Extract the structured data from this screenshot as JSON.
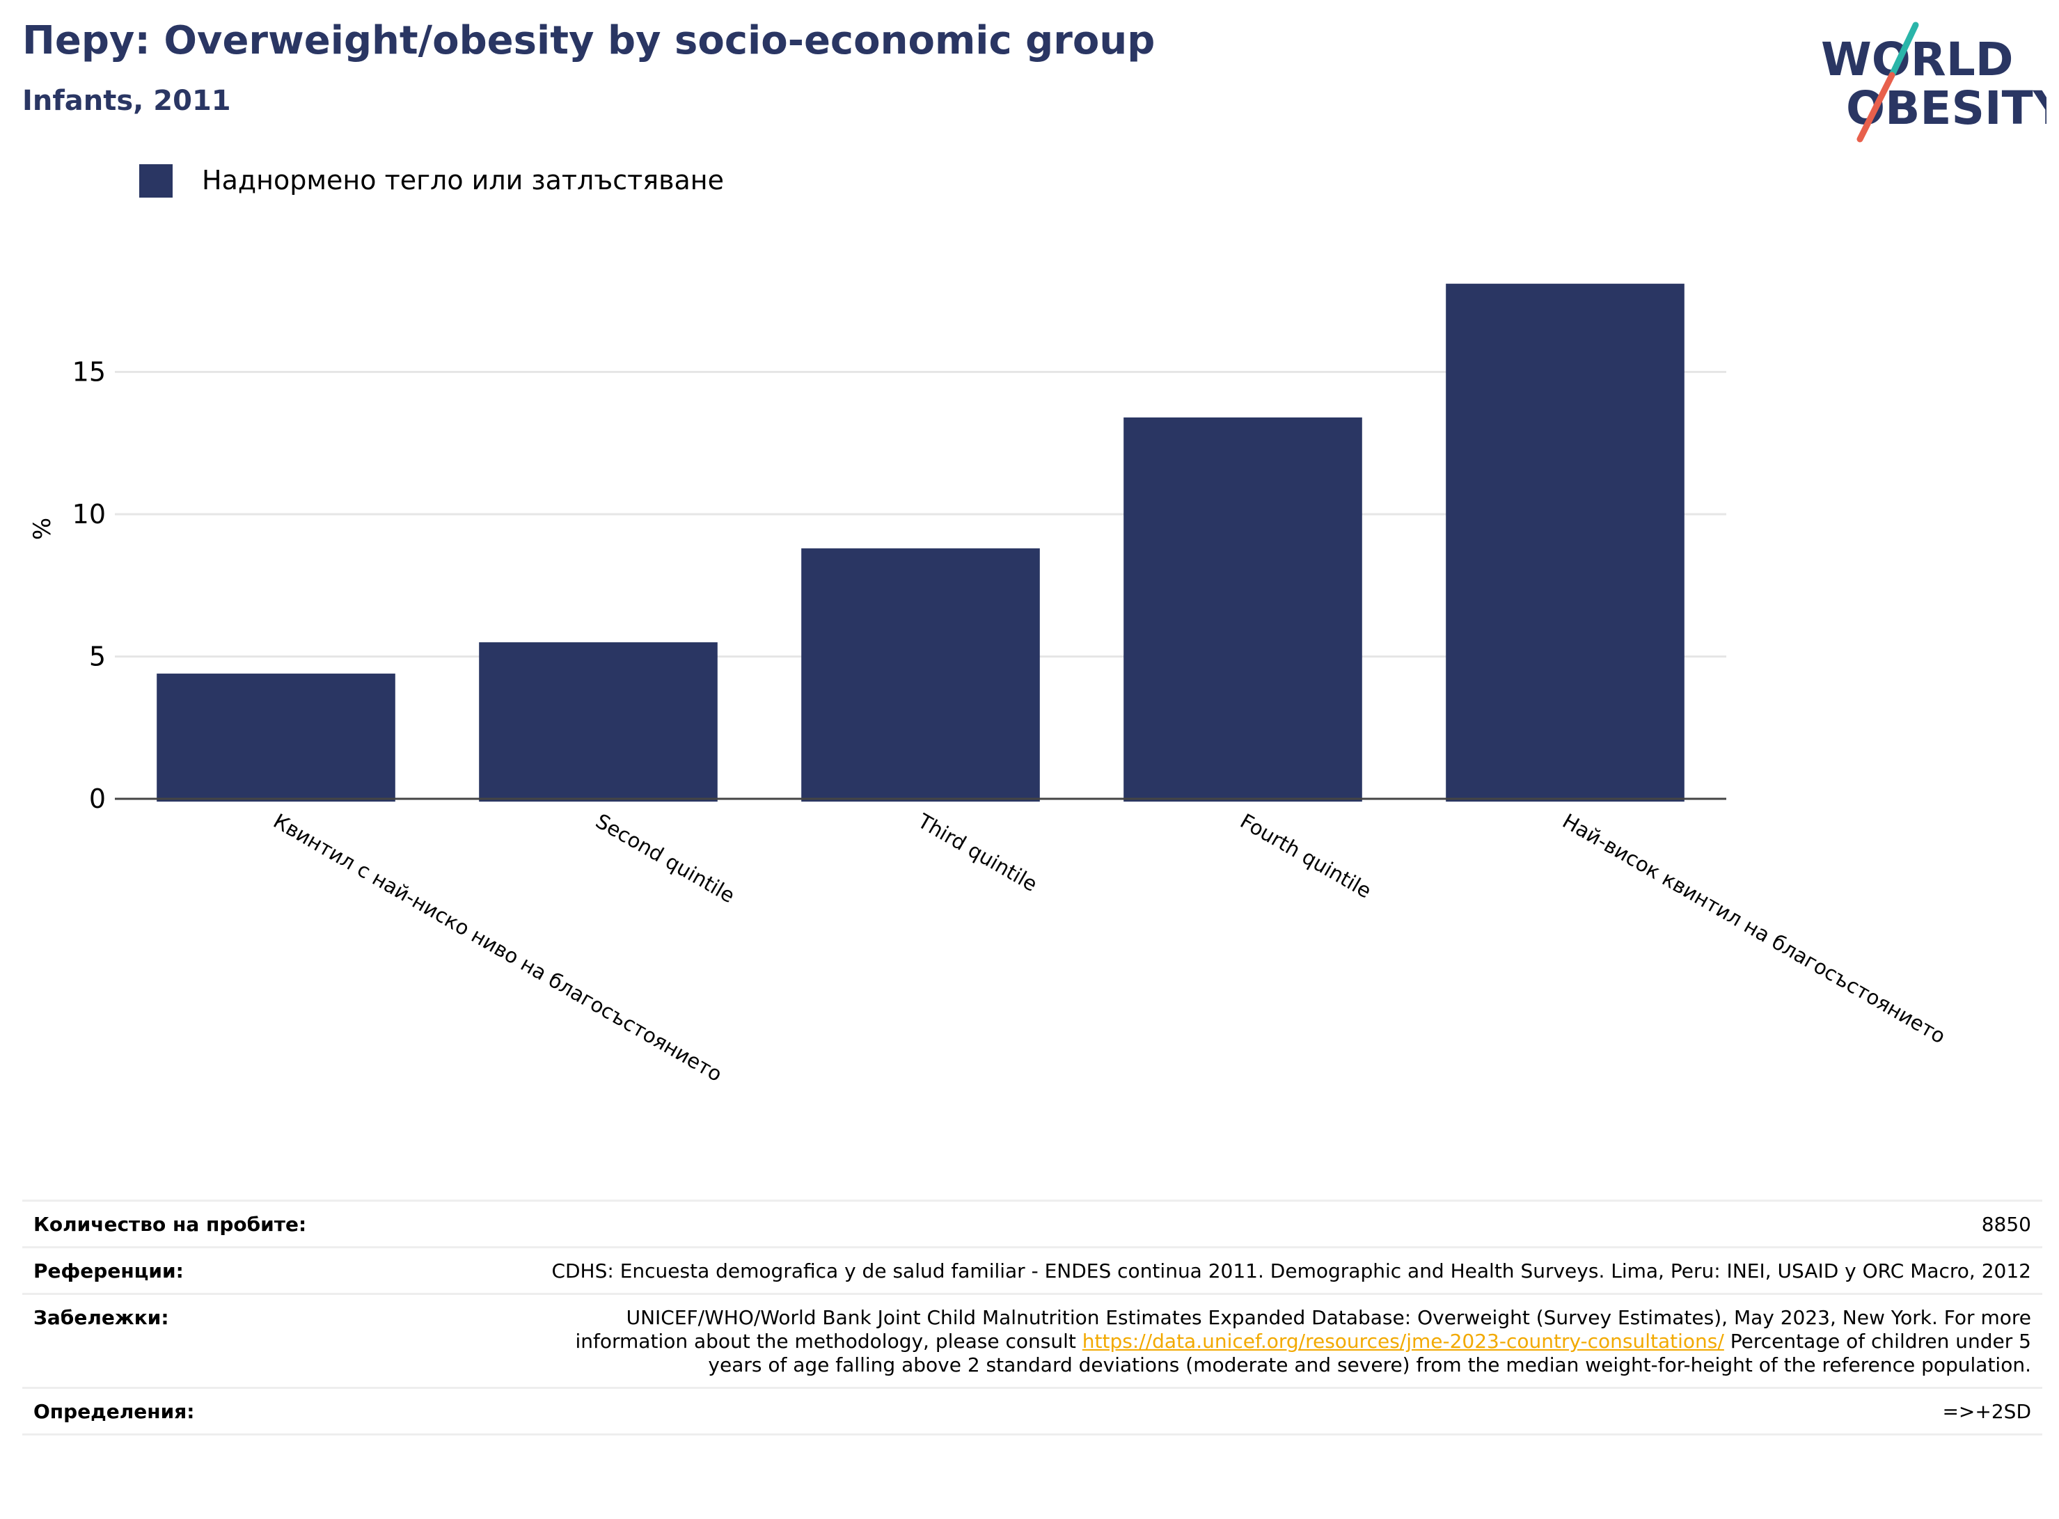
{
  "header": {
    "title": "Перу: Overweight/obesity by socio-economic group",
    "subtitle": "Infants, 2011"
  },
  "logo": {
    "line1": "WORLD",
    "line2": "OBESITY",
    "colors": {
      "text": "#2a3663",
      "slash_top": "#2ab5a9",
      "slash_bottom": "#e8604c"
    }
  },
  "chart_data": {
    "type": "bar",
    "categories": [
      "Квинтил с най-ниско ниво на благосъстоянието",
      "Second quintile",
      "Third quintile",
      "Fourth quintile",
      "Най-висок квинтил на благосъстоянието"
    ],
    "series": [
      {
        "name": "Наднормено тегло или затлъстяване",
        "values": [
          4.4,
          5.5,
          8.8,
          13.4,
          18.1
        ],
        "color": "#2a3663"
      }
    ],
    "ylabel": "%",
    "ylim": [
      0,
      20
    ],
    "yticks": [
      0,
      5,
      10,
      15
    ],
    "grid": true,
    "legend_position": "top-left"
  },
  "meta": {
    "sample_size": {
      "label": "Количество на пробите:",
      "value": "8850"
    },
    "references": {
      "label": "Референции:",
      "value": "CDHS: Encuesta demografica y de salud familiar - ENDES continua 2011. Demographic and Health Surveys. Lima, Peru: INEI, USAID y ORC Macro, 2012"
    },
    "notes": {
      "label": "Забележки:",
      "before": "UNICEF/WHO/World Bank Joint Child Malnutrition Estimates Expanded Database: Overweight (Survey Estimates), May 2023, New York. For more information about the methodology, please consult ",
      "link": "https://data.unicef.org/resources/jme-2023-country-consultations/",
      "after": " Percentage of children under 5 years of age falling above 2 standard deviations (moderate and severe) from the median weight-for-height of the reference population."
    },
    "definitions": {
      "label": "Определения:",
      "value": "=>+2SD"
    }
  }
}
